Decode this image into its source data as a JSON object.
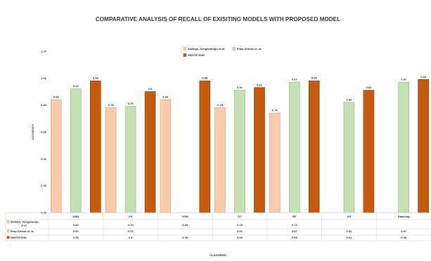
{
  "chart_data": {
    "type": "bar",
    "title": "COMPARATIVE ANALYSIS OF RECALL OF EXISITING MODELS WITH PROPOSED MODEL",
    "xlabel": "CLASSIFIER",
    "ylabel": "ACCURACY",
    "ylim": [
      0,
      1.2
    ],
    "yticks": [
      "0.00",
      "0.20",
      "0.40",
      "0.60",
      "0.80",
      "1.00",
      "1.20"
    ],
    "grid": false,
    "legend_position": "top-center",
    "categories": [
      "KNN",
      "LR",
      "SVM",
      "DT",
      "RF",
      "XG",
      "Stacking"
    ],
    "series": [
      {
        "name": "Sallaiya, Gangavarapu et.al.",
        "color": "#f8cbad",
        "stroke": "#e0a07c",
        "values": [
          0.84,
          0.78,
          0.84,
          0.78,
          0.74,
          null,
          null
        ],
        "labels": [
          "0.84",
          "0.78",
          "0.84",
          "0.78",
          "0.74",
          "",
          ""
        ]
      },
      {
        "name": "Elias Dritsas et. al.",
        "color": "#c5e0b4",
        "stroke": "#8fbc7a",
        "values": [
          0.92,
          0.79,
          null,
          0.91,
          0.97,
          0.82,
          0.97
        ],
        "labels": [
          "0.92",
          "0.79",
          "",
          "0.91",
          "0.97",
          "0.82",
          "0.97"
        ]
      },
      {
        "name": "SMOTE ENN",
        "color": "#c55a11",
        "stroke": "#8f3f08",
        "values": [
          0.98,
          0.9,
          0.98,
          0.93,
          0.98,
          0.91,
          0.99
        ],
        "labels": [
          "0.98",
          "0.9",
          "0.98",
          "0.93",
          "0.98",
          "0.91",
          "0.99"
        ]
      }
    ]
  }
}
